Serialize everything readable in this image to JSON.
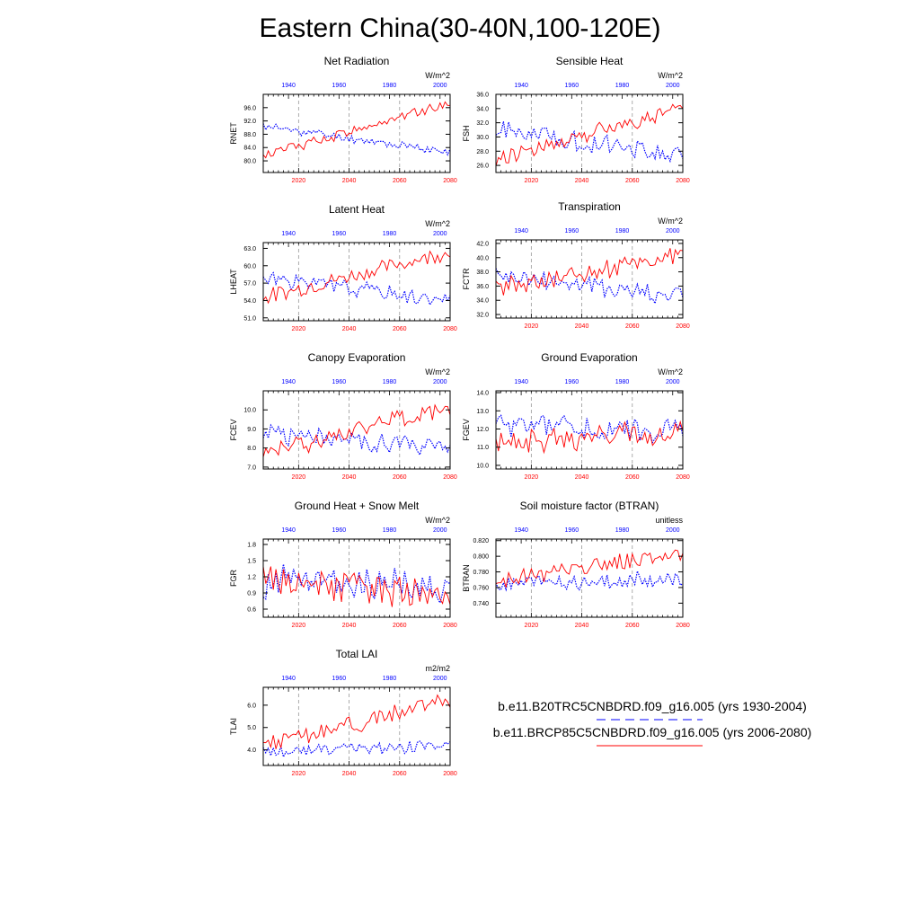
{
  "page_title": "Eastern China(30-40N,100-120E)",
  "colors": {
    "historical": "#0000ff",
    "future": "#ff0000",
    "axis": "#000000",
    "grid": "#999999"
  },
  "axes_common": {
    "top_axis_ticks": [
      "1940",
      "1960",
      "1980",
      "2000"
    ],
    "top_axis_range": [
      1930,
      2004
    ],
    "bottom_axis_ticks": [
      "2020",
      "2040",
      "2060",
      "2080"
    ],
    "bottom_axis_range": [
      2006,
      2080
    ]
  },
  "legend": [
    {
      "label": "b.e11.B20TRC5CNBDRD.f09_g16.005 (yrs 1930-2004)",
      "series": "historical",
      "style": "dashed"
    },
    {
      "label": "b.e11.BRCP85C5CNBDRD.f09_g16.005 (yrs 2006-2080)",
      "series": "future",
      "style": "solid"
    }
  ],
  "chart_data": [
    {
      "type": "line",
      "title": "Net Radiation",
      "ylabel": "RNET",
      "units": "W/m^2",
      "ylim": [
        76.5,
        100.0
      ],
      "yticks": [
        "80.0",
        "84.0",
        "88.0",
        "92.0",
        "96.0"
      ],
      "series": [
        {
          "name": "historical (1930-2004)",
          "hist": {
            "start": 90.5,
            "end": 82.5,
            "amp": 1.1,
            "seed": 11
          }
        },
        {
          "name": "future (2006-2080)",
          "fut": {
            "start": 81.5,
            "end": 97.5,
            "amp": 1.4,
            "seed": 12
          }
        }
      ]
    },
    {
      "type": "line",
      "title": "Sensible Heat",
      "ylabel": "FSH",
      "units": "W/m^2",
      "ylim": [
        25.0,
        36.0
      ],
      "yticks": [
        "26.0",
        "28.0",
        "30.0",
        "32.0",
        "34.0",
        "36.0"
      ],
      "series": [
        {
          "name": "historical (1930-2004)",
          "hist": {
            "start": 31.0,
            "end": 27.5,
            "amp": 1.2,
            "seed": 21
          }
        },
        {
          "name": "future (2006-2080)",
          "fut": {
            "start": 27.0,
            "end": 34.0,
            "amp": 1.0,
            "seed": 22
          }
        }
      ]
    },
    {
      "type": "line",
      "title": "Latent Heat",
      "ylabel": "LHEAT",
      "units": "W/m^2",
      "ylim": [
        50.5,
        64.0
      ],
      "yticks": [
        "51.0",
        "54.0",
        "57.0",
        "60.0",
        "63.0"
      ],
      "series": [
        {
          "name": "historical (1930-2004)",
          "hist": {
            "start": 58.0,
            "end": 54.0,
            "amp": 1.2,
            "seed": 31
          }
        },
        {
          "name": "future (2006-2080)",
          "fut": {
            "start": 54.5,
            "end": 62.5,
            "amp": 1.2,
            "seed": 32
          }
        }
      ]
    },
    {
      "type": "line",
      "title": "Transpiration",
      "ylabel": "FCTR",
      "units": "W/m^2",
      "ylim": [
        31.5,
        42.5
      ],
      "yticks": [
        "32.0",
        "34.0",
        "36.0",
        "38.0",
        "40.0",
        "42.0"
      ],
      "series": [
        {
          "name": "historical (1930-2004)",
          "hist": {
            "start": 37.5,
            "end": 34.5,
            "amp": 1.3,
            "seed": 41
          }
        },
        {
          "name": "future (2006-2080)",
          "fut": {
            "start": 35.5,
            "end": 40.5,
            "amp": 1.3,
            "seed": 42
          }
        }
      ]
    },
    {
      "type": "line",
      "title": "Canopy Evaporation",
      "ylabel": "FCEV",
      "units": "W/m^2",
      "ylim": [
        6.9,
        11.0
      ],
      "yticks": [
        "7.0",
        "8.0",
        "9.0",
        "10.0"
      ],
      "series": [
        {
          "name": "historical (1930-2004)",
          "hist": {
            "start": 8.8,
            "end": 7.9,
            "amp": 0.5,
            "seed": 51
          }
        },
        {
          "name": "future (2006-2080)",
          "fut": {
            "start": 7.7,
            "end": 10.2,
            "amp": 0.45,
            "seed": 52
          }
        }
      ]
    },
    {
      "type": "line",
      "title": "Ground Evaporation",
      "ylabel": "FGEV",
      "units": "W/m^2",
      "ylim": [
        9.8,
        14.1
      ],
      "yticks": [
        "10.0",
        "11.0",
        "12.0",
        "13.0",
        "14.0"
      ],
      "series": [
        {
          "name": "historical (1930-2004)",
          "hist": {
            "start": 12.2,
            "end": 11.8,
            "amp": 0.6,
            "seed": 61
          }
        },
        {
          "name": "future (2006-2080)",
          "fut": {
            "start": 11.3,
            "end": 11.8,
            "amp": 0.6,
            "seed": 62
          }
        }
      ]
    },
    {
      "type": "line",
      "title": "Ground Heat + Snow Melt",
      "ylabel": "FGR",
      "units": "W/m^2",
      "ylim": [
        0.45,
        1.9
      ],
      "yticks": [
        "0.6",
        "0.9",
        "1.2",
        "1.5",
        "1.8"
      ],
      "series": [
        {
          "name": "historical (1930-2004)",
          "hist": {
            "start": 1.15,
            "end": 1.0,
            "amp": 0.28,
            "seed": 71
          }
        },
        {
          "name": "future (2006-2080)",
          "fut": {
            "start": 1.15,
            "end": 0.85,
            "amp": 0.25,
            "seed": 72
          }
        }
      ]
    },
    {
      "type": "line",
      "title": "Soil moisture factor (BTRAN)",
      "ylabel": "BTRAN",
      "units": "unitless",
      "ylim": [
        0.722,
        0.822
      ],
      "yticks": [
        "0.740",
        "0.760",
        "0.780",
        "0.800",
        "0.820"
      ],
      "series": [
        {
          "name": "historical (1930-2004)",
          "hist": {
            "start": 0.765,
            "end": 0.77,
            "amp": 0.01,
            "seed": 81
          }
        },
        {
          "name": "future (2006-2080)",
          "fut": {
            "start": 0.768,
            "end": 0.805,
            "amp": 0.009,
            "seed": 82
          }
        }
      ]
    },
    {
      "type": "line",
      "title": "Total LAI",
      "ylabel": "TLAI",
      "units": "m2/m2",
      "ylim": [
        3.3,
        6.8
      ],
      "yticks": [
        "4.0",
        "5.0",
        "6.0"
      ],
      "series": [
        {
          "name": "historical (1930-2004)",
          "hist": {
            "start": 3.9,
            "end": 4.2,
            "amp": 0.25,
            "seed": 91
          }
        },
        {
          "name": "future (2006-2080)",
          "fut": {
            "start": 4.2,
            "end": 6.2,
            "amp": 0.35,
            "seed": 92
          }
        }
      ]
    }
  ]
}
